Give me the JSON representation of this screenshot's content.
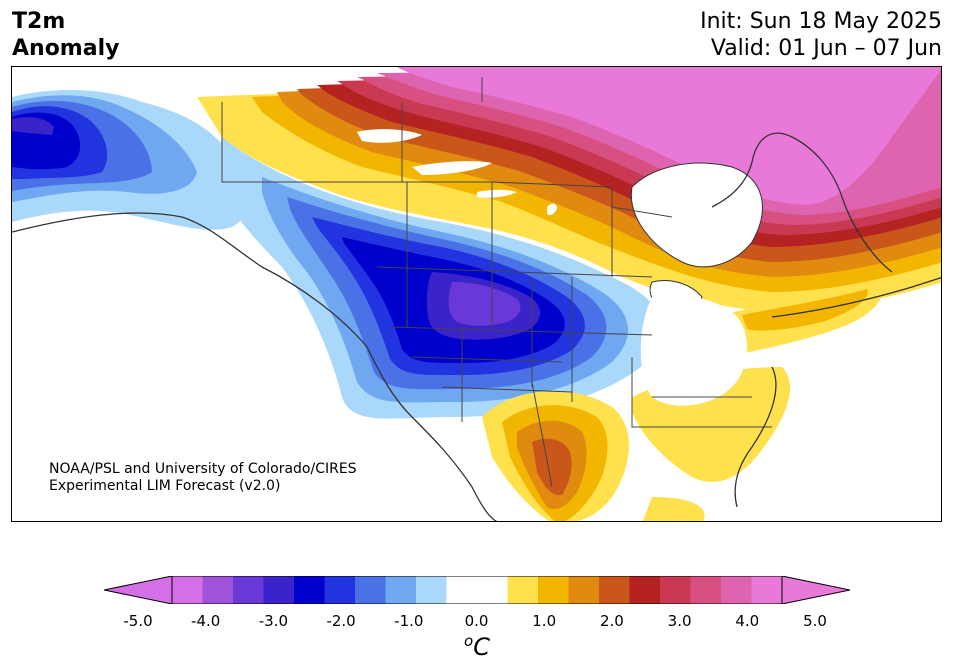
{
  "header": {
    "title_line1": "T2m",
    "title_line2": "Anomaly",
    "init_text": "Init: Sun 18 May 2025",
    "valid_text": "Valid: 01 Jun – 07 Jun"
  },
  "credit": {
    "line1": "NOAA/PSL and University of Colorado/CIRES",
    "line2": "Experimental LIM Forecast (v2.0)"
  },
  "colorbar": {
    "unit_base": "C",
    "unit_sup": "o",
    "ticks": [
      "-5.0",
      "-4.0",
      "-3.0",
      "-2.0",
      "-1.0",
      "0.0",
      "1.0",
      "2.0",
      "3.0",
      "4.0",
      "5.0"
    ],
    "colors": [
      "#d46fe6",
      "#a052d8",
      "#6a38d6",
      "#3a23c9",
      "#0000cd",
      "#2233e0",
      "#4a72e6",
      "#6fa7f0",
      "#a9d8fb",
      "#ffffff",
      "#ffffff",
      "#ffe04d",
      "#f2b600",
      "#e08a10",
      "#c9571a",
      "#b42222",
      "#c93a52",
      "#d84f82",
      "#df64b0",
      "#e879d8"
    ],
    "min_color": "#d46fe6",
    "max_color": "#e879d8"
  },
  "map": {
    "region": "North America",
    "variable": "2 m temperature anomaly",
    "features": [
      "cold anomaly over western/central US and western Canada",
      "warm anomaly over northern Canada and Arctic islands",
      "warm anomaly over Texas and Mexico",
      "warm anomaly over southeastern US"
    ]
  }
}
